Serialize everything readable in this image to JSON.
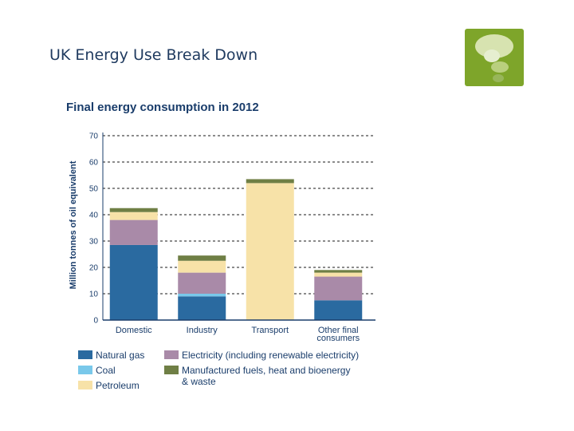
{
  "slide": {
    "title": "UK Energy Use Break Down"
  },
  "logo": {
    "icon": "speech-bubbles-icon",
    "color": "#7ea52a"
  },
  "chart_data": {
    "type": "bar",
    "stacked": true,
    "title": "Final energy consumption in 2012",
    "xlabel": "",
    "ylabel": "Million tonnes of oil equivalent",
    "ylim": [
      0,
      70
    ],
    "yticks": [
      0,
      10,
      20,
      30,
      40,
      50,
      60,
      70
    ],
    "grid": true,
    "legend_position": "bottom",
    "categories": [
      "Domestic",
      "Industry",
      "Transport",
      "Other final consumers"
    ],
    "category_labels": [
      [
        "Domestic"
      ],
      [
        "Industry"
      ],
      [
        "Transport"
      ],
      [
        "Other final",
        "consumers"
      ]
    ],
    "series": [
      {
        "name": "Natural gas",
        "color": "#2a6aa0",
        "values": [
          28.5,
          9,
          0,
          7.5
        ]
      },
      {
        "name": "Coal",
        "color": "#79c8ea",
        "values": [
          0,
          1,
          0,
          0
        ]
      },
      {
        "name": "Electricity (including renewable electricity)",
        "color": "#a98aa8",
        "values": [
          9.5,
          8,
          0,
          9
        ]
      },
      {
        "name": "Petroleum",
        "color": "#f7e2a8",
        "values": [
          3,
          4.5,
          52,
          1.5
        ]
      },
      {
        "name": "Manufactured fuels, heat and bioenergy & waste",
        "color": "#6f7f45",
        "values": [
          1.5,
          2,
          1.5,
          1
        ]
      }
    ],
    "legend": [
      {
        "series": 0,
        "lines": [
          "Natural gas"
        ]
      },
      {
        "series": 2,
        "lines": [
          "Electricity (including renewable electricity)"
        ]
      },
      {
        "series": 1,
        "lines": [
          "Coal"
        ]
      },
      {
        "series": 4,
        "lines": [
          "Manufactured fuels, heat and bioenergy",
          "& waste"
        ]
      },
      {
        "series": 3,
        "lines": [
          "Petroleum"
        ]
      }
    ]
  }
}
